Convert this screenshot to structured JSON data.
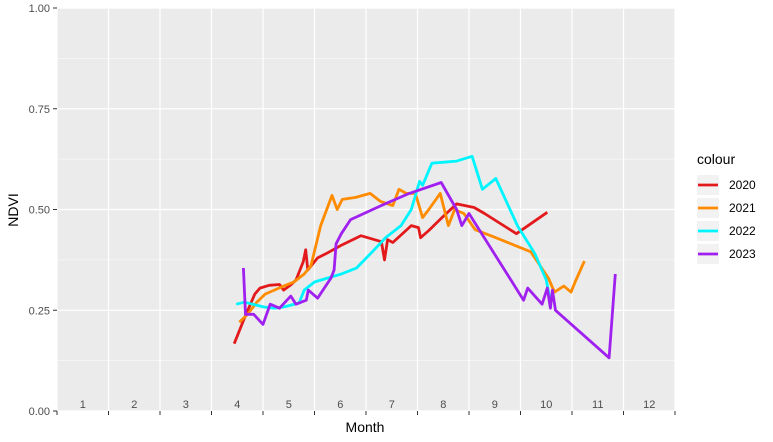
{
  "chart_data": {
    "type": "line",
    "xlabel": "Month",
    "ylabel": "NDVI",
    "xlim": [
      0.5,
      12.5
    ],
    "ylim": [
      0.0,
      1.0
    ],
    "x_tick_labels": [
      "1",
      "2",
      "3",
      "4",
      "5",
      "6",
      "7",
      "8",
      "9",
      "10",
      "11",
      "12"
    ],
    "y_ticks": [
      0.0,
      0.25,
      0.5,
      0.75,
      1.0
    ],
    "y_tick_labels": [
      "0.00",
      "0.25",
      "0.50",
      "0.75",
      "1.00"
    ],
    "grid": true,
    "legend_title": "colour",
    "legend_position": "right",
    "series": [
      {
        "name": "2020",
        "color": "#E31A1C",
        "points": [
          [
            3.94,
            0.167
          ],
          [
            4.14,
            0.231
          ],
          [
            4.34,
            0.29
          ],
          [
            4.44,
            0.305
          ],
          [
            4.62,
            0.312
          ],
          [
            4.82,
            0.314
          ],
          [
            4.9,
            0.3
          ],
          [
            5.04,
            0.313
          ],
          [
            5.14,
            0.325
          ],
          [
            5.28,
            0.37
          ],
          [
            5.33,
            0.4
          ],
          [
            5.37,
            0.35
          ],
          [
            5.56,
            0.38
          ],
          [
            5.72,
            0.39
          ],
          [
            6.0,
            0.41
          ],
          [
            6.4,
            0.435
          ],
          [
            6.8,
            0.42
          ],
          [
            6.86,
            0.375
          ],
          [
            6.92,
            0.425
          ],
          [
            7.02,
            0.418
          ],
          [
            7.38,
            0.46
          ],
          [
            7.52,
            0.455
          ],
          [
            7.56,
            0.43
          ],
          [
            7.72,
            0.448
          ],
          [
            7.96,
            0.478
          ],
          [
            8.26,
            0.514
          ],
          [
            8.6,
            0.505
          ],
          [
            8.8,
            0.49
          ],
          [
            9.42,
            0.44
          ],
          [
            10.02,
            0.493
          ]
        ]
      },
      {
        "name": "2021",
        "color": "#FF8C00",
        "points": [
          [
            4.04,
            0.22
          ],
          [
            4.2,
            0.24
          ],
          [
            4.38,
            0.27
          ],
          [
            4.54,
            0.29
          ],
          [
            4.72,
            0.3
          ],
          [
            4.9,
            0.31
          ],
          [
            5.1,
            0.32
          ],
          [
            5.3,
            0.34
          ],
          [
            5.43,
            0.36
          ],
          [
            5.62,
            0.46
          ],
          [
            5.84,
            0.535
          ],
          [
            5.94,
            0.5
          ],
          [
            6.04,
            0.525
          ],
          [
            6.3,
            0.53
          ],
          [
            6.58,
            0.54
          ],
          [
            6.78,
            0.52
          ],
          [
            7.02,
            0.51
          ],
          [
            7.14,
            0.55
          ],
          [
            7.28,
            0.54
          ],
          [
            7.46,
            0.54
          ],
          [
            7.6,
            0.48
          ],
          [
            7.72,
            0.5
          ],
          [
            7.94,
            0.54
          ],
          [
            8.1,
            0.46
          ],
          [
            8.22,
            0.5
          ],
          [
            8.4,
            0.49
          ],
          [
            8.62,
            0.45
          ],
          [
            9.02,
            0.43
          ],
          [
            9.7,
            0.395
          ],
          [
            10.04,
            0.33
          ],
          [
            10.16,
            0.295
          ],
          [
            10.34,
            0.31
          ],
          [
            10.48,
            0.295
          ],
          [
            10.56,
            0.32
          ],
          [
            10.74,
            0.372
          ]
        ]
      },
      {
        "name": "2022",
        "color": "#00F5FF",
        "points": [
          [
            3.98,
            0.265
          ],
          [
            4.14,
            0.27
          ],
          [
            4.3,
            0.265
          ],
          [
            4.52,
            0.258
          ],
          [
            4.72,
            0.255
          ],
          [
            4.9,
            0.258
          ],
          [
            5.2,
            0.268
          ],
          [
            5.3,
            0.3
          ],
          [
            5.5,
            0.32
          ],
          [
            6.02,
            0.34
          ],
          [
            6.32,
            0.355
          ],
          [
            6.66,
            0.4
          ],
          [
            6.88,
            0.43
          ],
          [
            7.18,
            0.46
          ],
          [
            7.38,
            0.5
          ],
          [
            7.54,
            0.57
          ],
          [
            7.6,
            0.56
          ],
          [
            7.78,
            0.615
          ],
          [
            8.26,
            0.62
          ],
          [
            8.56,
            0.632
          ],
          [
            8.76,
            0.55
          ],
          [
            9.02,
            0.577
          ],
          [
            9.44,
            0.46
          ],
          [
            9.78,
            0.39
          ],
          [
            10.0,
            0.325
          ],
          [
            10.08,
            0.27
          ],
          [
            10.02,
            0.31
          ]
        ]
      },
      {
        "name": "2023",
        "color": "#A020F0",
        "points": [
          [
            4.12,
            0.355
          ],
          [
            4.16,
            0.24
          ],
          [
            4.32,
            0.24
          ],
          [
            4.5,
            0.215
          ],
          [
            4.64,
            0.265
          ],
          [
            4.82,
            0.255
          ],
          [
            5.04,
            0.285
          ],
          [
            5.14,
            0.265
          ],
          [
            5.34,
            0.275
          ],
          [
            5.38,
            0.3
          ],
          [
            5.56,
            0.28
          ],
          [
            5.82,
            0.33
          ],
          [
            5.88,
            0.35
          ],
          [
            5.92,
            0.415
          ],
          [
            6.02,
            0.44
          ],
          [
            6.2,
            0.475
          ],
          [
            6.8,
            0.51
          ],
          [
            7.34,
            0.54
          ],
          [
            7.96,
            0.567
          ],
          [
            8.26,
            0.5
          ],
          [
            8.36,
            0.46
          ],
          [
            8.5,
            0.49
          ],
          [
            9.56,
            0.275
          ],
          [
            9.64,
            0.305
          ],
          [
            9.92,
            0.265
          ],
          [
            10.02,
            0.305
          ],
          [
            10.08,
            0.255
          ],
          [
            10.12,
            0.3
          ],
          [
            10.18,
            0.25
          ],
          [
            11.22,
            0.132
          ],
          [
            11.34,
            0.34
          ]
        ]
      }
    ]
  }
}
